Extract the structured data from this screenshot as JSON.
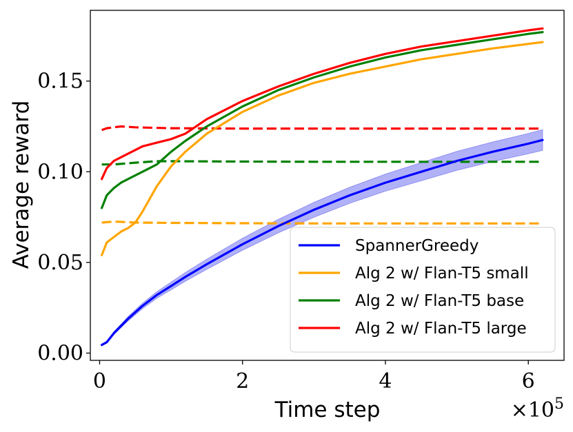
{
  "chart_data": {
    "type": "line",
    "xlabel": "Time step",
    "ylabel": "Average reward",
    "x_multiplier_label": "×10^5",
    "xlim": [
      -0.13,
      6.5
    ],
    "ylim": [
      -0.004,
      0.189
    ],
    "x_ticks": [
      0,
      2,
      4,
      6
    ],
    "x_tick_labels": [
      "0",
      "2",
      "4",
      "6"
    ],
    "y_ticks": [
      0.0,
      0.05,
      0.1,
      0.15
    ],
    "y_tick_labels": [
      "0.00",
      "0.05",
      "0.10",
      "0.15"
    ],
    "grid": false,
    "legend_position": "lower-right",
    "series": [
      {
        "name": "SpannerGreedy",
        "color": "#0000ff",
        "style": "solid",
        "x": [
          0.03,
          0.1,
          0.2,
          0.4,
          0.6,
          0.8,
          1.0,
          1.2,
          1.5,
          2.0,
          2.5,
          3.0,
          3.5,
          4.0,
          4.5,
          5.0,
          5.5,
          6.0,
          6.2
        ],
        "y": [
          0.0045,
          0.006,
          0.011,
          0.019,
          0.026,
          0.032,
          0.037,
          0.042,
          0.049,
          0.06,
          0.07,
          0.079,
          0.087,
          0.094,
          0.1,
          0.106,
          0.111,
          0.1155,
          0.1175
        ],
        "band": [
          0.0005,
          0.0005,
          0.0008,
          0.0012,
          0.0015,
          0.0018,
          0.0021,
          0.0024,
          0.0028,
          0.0033,
          0.0037,
          0.0041,
          0.0044,
          0.0047,
          0.005,
          0.0052,
          0.0054,
          0.0056,
          0.0057
        ],
        "band_color": "#6464f0"
      },
      {
        "name": "Alg 2 w/ Flan-T5 small",
        "color": "#ffa500",
        "style": "solid",
        "x": [
          0.03,
          0.1,
          0.2,
          0.3,
          0.4,
          0.5,
          0.6,
          0.8,
          1.0,
          1.2,
          1.5,
          2.0,
          2.5,
          3.0,
          3.5,
          4.0,
          4.5,
          5.0,
          5.5,
          6.0,
          6.2
        ],
        "y": [
          0.054,
          0.061,
          0.064,
          0.067,
          0.069,
          0.072,
          0.078,
          0.092,
          0.103,
          0.111,
          0.121,
          0.133,
          0.142,
          0.149,
          0.154,
          0.158,
          0.162,
          0.165,
          0.168,
          0.1705,
          0.1715
        ]
      },
      {
        "name": "Alg 2 w/ Flan-T5 base",
        "color": "#008000",
        "style": "solid",
        "x": [
          0.03,
          0.1,
          0.2,
          0.3,
          0.4,
          0.5,
          0.6,
          0.8,
          1.0,
          1.2,
          1.5,
          2.0,
          2.5,
          3.0,
          3.5,
          4.0,
          4.5,
          5.0,
          5.5,
          6.0,
          6.2
        ],
        "y": [
          0.08,
          0.087,
          0.091,
          0.094,
          0.096,
          0.098,
          0.1,
          0.104,
          0.111,
          0.117,
          0.125,
          0.136,
          0.145,
          0.152,
          0.158,
          0.163,
          0.167,
          0.17,
          0.173,
          0.176,
          0.177
        ]
      },
      {
        "name": "Alg 2 w/ Flan-T5 large",
        "color": "#ff0000",
        "style": "solid",
        "x": [
          0.03,
          0.1,
          0.2,
          0.3,
          0.4,
          0.5,
          0.6,
          0.8,
          1.0,
          1.2,
          1.5,
          2.0,
          2.5,
          3.0,
          3.5,
          4.0,
          4.5,
          5.0,
          5.5,
          6.0,
          6.2
        ],
        "y": [
          0.096,
          0.102,
          0.106,
          0.108,
          0.11,
          0.112,
          0.114,
          0.116,
          0.118,
          0.121,
          0.129,
          0.139,
          0.147,
          0.154,
          0.16,
          0.165,
          0.169,
          0.172,
          0.175,
          0.178,
          0.179
        ]
      },
      {
        "color": "#ffa500",
        "style": "dashed",
        "x": [
          0.03,
          0.2,
          0.5,
          1.0,
          2.0,
          3.0,
          4.0,
          5.0,
          6.0,
          6.2
        ],
        "y": [
          0.072,
          0.0725,
          0.072,
          0.0718,
          0.0716,
          0.0715,
          0.0715,
          0.0715,
          0.0715,
          0.0715
        ]
      },
      {
        "color": "#008000",
        "style": "dashed",
        "x": [
          0.03,
          0.2,
          0.5,
          0.8,
          1.0,
          2.0,
          3.0,
          4.0,
          5.0,
          6.0,
          6.2
        ],
        "y": [
          0.104,
          0.104,
          0.105,
          0.1058,
          0.1058,
          0.1056,
          0.1055,
          0.1055,
          0.1055,
          0.1055,
          0.1055
        ]
      },
      {
        "color": "#ff0000",
        "style": "dashed",
        "x": [
          0.03,
          0.1,
          0.3,
          0.5,
          1.0,
          2.0,
          3.0,
          4.0,
          5.0,
          6.0,
          6.2
        ],
        "y": [
          0.123,
          0.124,
          0.125,
          0.1245,
          0.124,
          0.1238,
          0.1238,
          0.1238,
          0.1238,
          0.1238,
          0.1238
        ]
      }
    ],
    "legend": [
      {
        "label": "SpannerGreedy",
        "color": "#0000ff"
      },
      {
        "label": "Alg 2 w/ Flan-T5 small",
        "color": "#ffa500"
      },
      {
        "label": "Alg 2 w/ Flan-T5 base",
        "color": "#008000"
      },
      {
        "label": "Alg 2 w/ Flan-T5 large",
        "color": "#ff0000"
      }
    ]
  }
}
